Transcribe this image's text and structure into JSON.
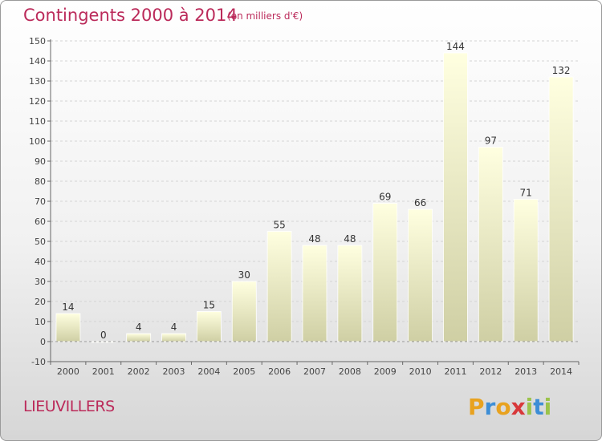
{
  "header": {
    "title": "Contingents 2000 à 2014",
    "subtitle": "(en milliers d'€)"
  },
  "footer": {
    "commune": "LIEUVILLERS",
    "logo_letters": [
      "P",
      "r",
      "o",
      "x",
      "i",
      "t",
      "i"
    ],
    "logo_colors": [
      "#e8a21f",
      "#3d8ed6",
      "#e8a21f",
      "#d8383a",
      "#9bc34a",
      "#3d8ed6",
      "#9bc34a"
    ]
  },
  "chart_data": {
    "type": "bar",
    "title": "Contingents 2000 à 2014",
    "subtitle": "(en milliers d'€)",
    "categories": [
      "2000",
      "2001",
      "2002",
      "2003",
      "2004",
      "2005",
      "2006",
      "2007",
      "2008",
      "2009",
      "2010",
      "2011",
      "2012",
      "2013",
      "2014"
    ],
    "values": [
      14,
      0,
      4,
      4,
      15,
      30,
      55,
      48,
      48,
      69,
      66,
      144,
      97,
      71,
      132
    ],
    "ylim": [
      -10,
      150
    ],
    "yticks": [
      -10,
      0,
      10,
      20,
      30,
      40,
      50,
      60,
      70,
      80,
      90,
      100,
      110,
      120,
      130,
      140,
      150
    ],
    "grid": true,
    "bar_color_top": "#ffffe0",
    "bar_color_bottom": "#cfcfa4"
  }
}
